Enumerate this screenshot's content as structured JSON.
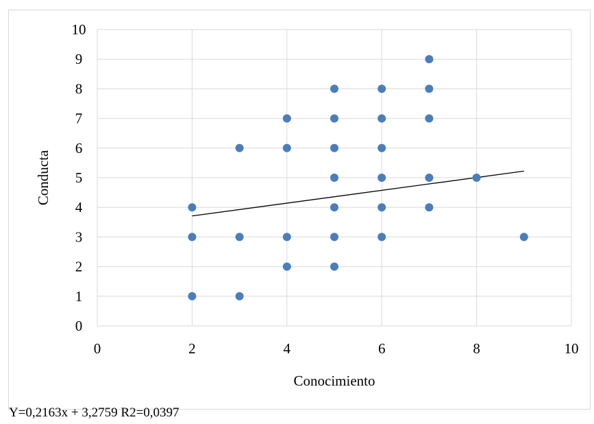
{
  "chart_data": {
    "type": "scatter",
    "title": "",
    "xlabel": "Conocimiento",
    "ylabel": "Conducta",
    "xlim": [
      0,
      10
    ],
    "ylim": [
      0,
      10
    ],
    "x_ticks": [
      0,
      2,
      4,
      6,
      8,
      10
    ],
    "y_ticks": [
      0,
      1,
      2,
      3,
      4,
      5,
      6,
      7,
      8,
      9,
      10
    ],
    "grid": true,
    "point_color": "#4A7EBB",
    "line_color": "#000000",
    "points": [
      {
        "x": 2,
        "y": 1
      },
      {
        "x": 2,
        "y": 3
      },
      {
        "x": 2,
        "y": 4
      },
      {
        "x": 3,
        "y": 1
      },
      {
        "x": 3,
        "y": 3
      },
      {
        "x": 3,
        "y": 6
      },
      {
        "x": 4,
        "y": 2
      },
      {
        "x": 4,
        "y": 3
      },
      {
        "x": 4,
        "y": 6
      },
      {
        "x": 4,
        "y": 7
      },
      {
        "x": 5,
        "y": 2
      },
      {
        "x": 5,
        "y": 3
      },
      {
        "x": 5,
        "y": 4
      },
      {
        "x": 5,
        "y": 5
      },
      {
        "x": 5,
        "y": 6
      },
      {
        "x": 5,
        "y": 7
      },
      {
        "x": 5,
        "y": 8
      },
      {
        "x": 6,
        "y": 3
      },
      {
        "x": 6,
        "y": 4
      },
      {
        "x": 6,
        "y": 5
      },
      {
        "x": 6,
        "y": 6
      },
      {
        "x": 6,
        "y": 7
      },
      {
        "x": 6,
        "y": 8
      },
      {
        "x": 7,
        "y": 4
      },
      {
        "x": 7,
        "y": 5
      },
      {
        "x": 7,
        "y": 7
      },
      {
        "x": 7,
        "y": 8
      },
      {
        "x": 7,
        "y": 9
      },
      {
        "x": 8,
        "y": 5
      },
      {
        "x": 9,
        "y": 3
      }
    ],
    "trendline": {
      "slope": 0.2163,
      "intercept": 3.2759,
      "x_range": [
        2,
        9
      ]
    },
    "equation_text": "Y=0,2163x + 3,2759  R2=0,0397"
  }
}
